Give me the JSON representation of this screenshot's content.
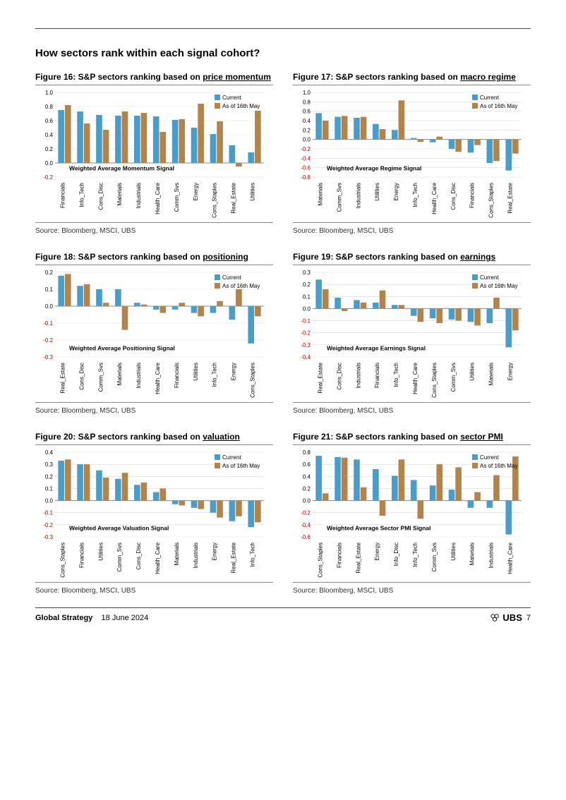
{
  "section_title": "How sectors rank within each signal cohort?",
  "legend": {
    "current": "Current",
    "prev": "As of 16th May"
  },
  "colors": {
    "current": "#4a9cc9",
    "prev": "#b2844c",
    "axis": "#808080",
    "grid": "#d9d9d9",
    "text": "#000000",
    "neg_tick": "#c00000"
  },
  "source_text": "Source: Bloomberg, MSCI, UBS",
  "footer": {
    "strategy": "Global Strategy",
    "date": "18 June 2024",
    "brand": "UBS",
    "page": "7"
  },
  "charts": [
    {
      "id": "fig16",
      "title_prefix": "Figure 16: S&P sectors ranking based on ",
      "title_underlined": "price momentum",
      "annotation": "Weighted Average Momentum Signal",
      "ymin": -0.2,
      "ymax": 1.0,
      "ystep": 0.2,
      "categories": [
        "Financials",
        "Info_Tech",
        "Cons_Disc",
        "Materials",
        "Industrials",
        "Health_Care",
        "Comm_Svs",
        "Energy",
        "Cons_Staples",
        "Real_Estate",
        "Utilities"
      ],
      "current": [
        0.75,
        0.73,
        0.68,
        0.67,
        0.67,
        0.66,
        0.61,
        0.5,
        0.41,
        0.25,
        0.15
      ],
      "prev": [
        0.82,
        0.56,
        0.47,
        0.73,
        0.71,
        0.44,
        0.62,
        0.84,
        0.59,
        -0.05,
        0.74
      ]
    },
    {
      "id": "fig17",
      "title_prefix": "Figure 17: S&P sectors ranking based on ",
      "title_underlined": "macro regime",
      "annotation": "Weighted Average Regime Signal",
      "ymin": -0.8,
      "ymax": 1.0,
      "ystep": 0.2,
      "categories": [
        "Materials",
        "Comm_Svs",
        "Industrials",
        "Utilities",
        "Energy",
        "Info_Tech",
        "Health_Care",
        "Cons_Disc",
        "Financials",
        "Cons_Staples",
        "Real_Estate"
      ],
      "current": [
        0.56,
        0.48,
        0.46,
        0.33,
        0.2,
        0.03,
        -0.06,
        -0.2,
        -0.28,
        -0.5,
        -0.66
      ],
      "prev": [
        0.4,
        0.5,
        0.48,
        0.22,
        0.83,
        -0.05,
        0.06,
        -0.26,
        -0.12,
        -0.46,
        -0.3
      ]
    },
    {
      "id": "fig18",
      "title_prefix": "Figure 18: S&P sectors ranking based on ",
      "title_underlined": "positioning",
      "annotation": "Weighted Average Positioning Signal",
      "ymin": -0.3,
      "ymax": 0.2,
      "ystep": 0.1,
      "categories": [
        "Real_Estate",
        "Cons_Disc",
        "Comm_Svs",
        "Materials",
        "Industrials",
        "Health_Care",
        "Financials",
        "Utilities",
        "Info_Tech",
        "Energy",
        "Cons_Staples"
      ],
      "current": [
        0.18,
        0.12,
        0.1,
        0.1,
        0.02,
        -0.02,
        -0.02,
        -0.04,
        -0.04,
        -0.08,
        -0.22
      ],
      "prev": [
        0.19,
        0.13,
        0.02,
        -0.14,
        0.01,
        -0.04,
        0.02,
        -0.06,
        0.03,
        0.1,
        -0.06
      ]
    },
    {
      "id": "fig19",
      "title_prefix": "Figure 19: S&P sectors ranking based on ",
      "title_underlined": "earnings",
      "annotation": "Weighted Average Earnings Signal",
      "ymin": -0.4,
      "ymax": 0.3,
      "ystep": 0.1,
      "categories": [
        "Real_Estate",
        "Cons_Disc",
        "Industrials",
        "Financials",
        "Info_Tech",
        "Health_Care",
        "Cons_Staples",
        "Comm_Svs",
        "Utilities",
        "Materials",
        "Energy"
      ],
      "current": [
        0.24,
        0.09,
        0.07,
        0.05,
        0.03,
        -0.06,
        -0.08,
        -0.09,
        -0.11,
        -0.12,
        -0.32
      ],
      "prev": [
        0.16,
        -0.02,
        0.05,
        0.15,
        0.03,
        -0.11,
        -0.12,
        -0.1,
        -0.14,
        0.09,
        -0.18
      ]
    },
    {
      "id": "fig20",
      "title_prefix": "Figure 20: S&P sectors ranking based on ",
      "title_underlined": "valuation",
      "annotation": "Weighted Average Valuation Signal",
      "ymin": -0.3,
      "ymax": 0.4,
      "ystep": 0.1,
      "categories": [
        "Cons_Staples",
        "Financials",
        "Utilities",
        "Comm_Svs",
        "Cons_Disc",
        "Health_Care",
        "Materials",
        "Industrials",
        "Energy",
        "Real_Estate",
        "Info_Tech"
      ],
      "current": [
        0.33,
        0.3,
        0.25,
        0.18,
        0.13,
        0.07,
        -0.03,
        -0.06,
        -0.1,
        -0.17,
        -0.22
      ],
      "prev": [
        0.34,
        0.3,
        0.19,
        0.23,
        0.15,
        0.1,
        -0.04,
        -0.07,
        -0.14,
        -0.13,
        -0.18
      ]
    },
    {
      "id": "fig21",
      "title_prefix": "Figure 21: S&P sectors ranking based on ",
      "title_underlined": "sector PMI",
      "annotation": "Weighted Average Sector PMI Signal",
      "ymin": -0.6,
      "ymax": 0.8,
      "ystep": 0.2,
      "categories": [
        "Cons_Staples",
        "Financials",
        "Real_Estate",
        "Energy",
        "Info_Disc",
        "Info_Tech",
        "Comm_Svs",
        "Utilities",
        "Materials",
        "Industrials",
        "Health_Care"
      ],
      "current": [
        0.74,
        0.72,
        0.68,
        0.52,
        0.41,
        0.34,
        0.25,
        0.18,
        -0.12,
        -0.12,
        -0.56
      ],
      "prev": [
        0.12,
        0.71,
        0.22,
        -0.25,
        0.68,
        -0.3,
        0.6,
        0.55,
        0.14,
        0.42,
        0.73
      ]
    }
  ]
}
